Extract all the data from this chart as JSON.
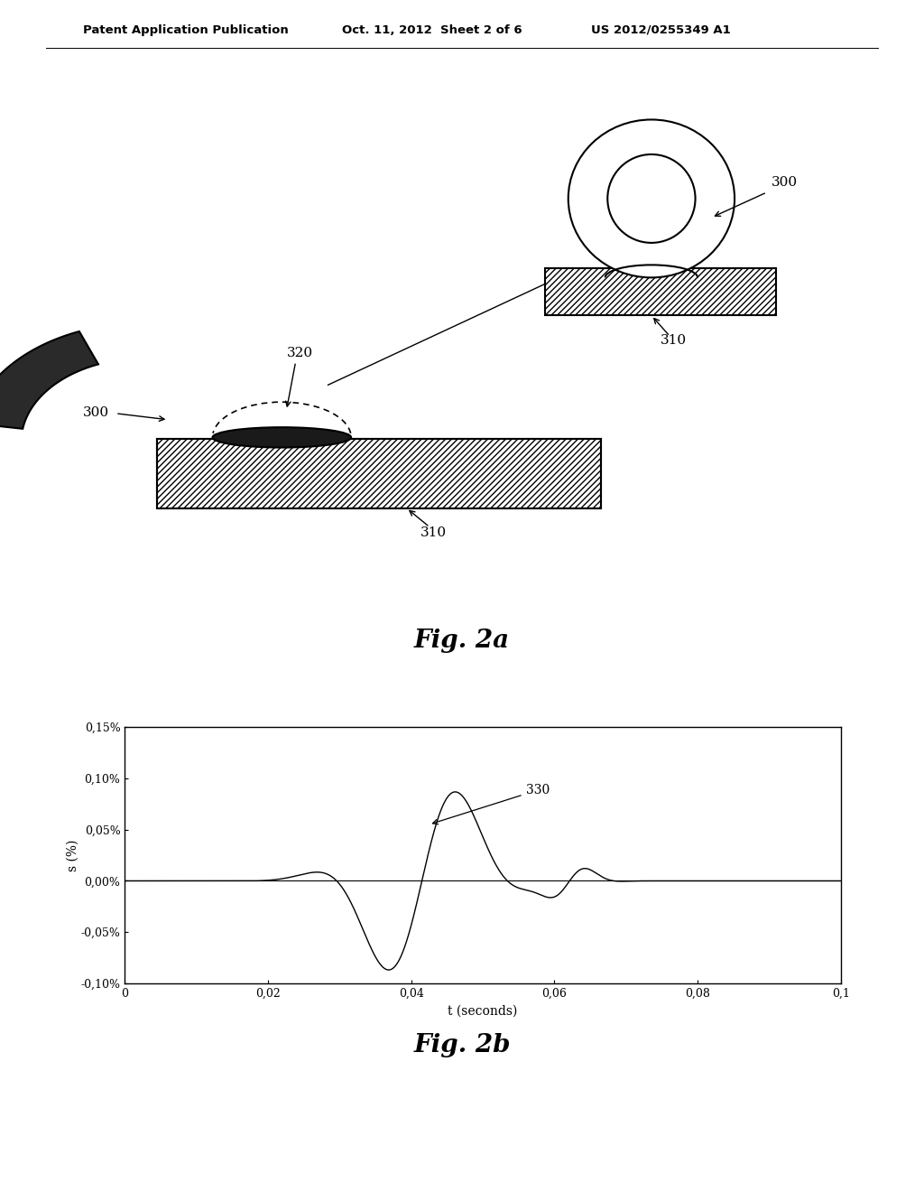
{
  "bg_color": "#ffffff",
  "header_left": "Patent Application Publication",
  "header_center": "Oct. 11, 2012  Sheet 2 of 6",
  "header_right": "US 2012/0255349 A1",
  "fig2a_label": "Fig. 2a",
  "fig2b_label": "Fig. 2b",
  "label_300_top": "300",
  "label_310_top": "310",
  "label_300_bottom": "300",
  "label_310_bottom": "310",
  "label_320": "320",
  "label_330": "330",
  "graph_xlabel": "t (seconds)",
  "graph_ylabel": "s (%)",
  "ytick_labels": [
    "0,15%",
    "0,10%",
    "0,05%",
    "0,00%",
    "-0,05%",
    "-0,10%"
  ],
  "ytick_values": [
    0.0015,
    0.001,
    0.0005,
    0.0,
    -0.0005,
    -0.001
  ],
  "xtick_labels": [
    "0",
    "0,02",
    "0,04",
    "0,06",
    "0,08",
    "0,1"
  ],
  "xtick_values": [
    0.0,
    0.02,
    0.04,
    0.06,
    0.08,
    0.1
  ],
  "ylim": [
    -0.001,
    0.0015
  ],
  "xlim": [
    0.0,
    0.1
  ]
}
